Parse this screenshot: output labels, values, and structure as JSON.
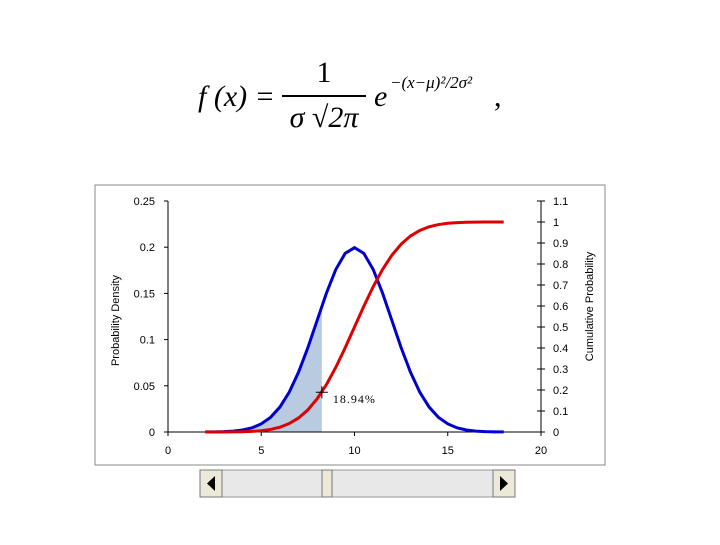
{
  "formula": {
    "lhs": "f (x) =",
    "numerator": "1",
    "denominator": "σ √2π",
    "base": "e",
    "exponent": "−(x−μ)²/2σ²",
    "trailing": ","
  },
  "chart_data": {
    "type": "line",
    "x": [
      2,
      2.5,
      3,
      3.5,
      4,
      4.5,
      5,
      5.5,
      6,
      6.5,
      7,
      7.5,
      8,
      8.5,
      9,
      9.5,
      10,
      10.5,
      11,
      11.5,
      12,
      12.5,
      13,
      13.5,
      14,
      14.5,
      15,
      15.5,
      16,
      16.5,
      17,
      17.5,
      18
    ],
    "series": [
      {
        "name": "Probability Density",
        "color": "#0000cc",
        "axis": "y",
        "values": [
          0.0001,
          0.0002,
          0.0004,
          0.001,
          0.0022,
          0.0045,
          0.0088,
          0.0159,
          0.027,
          0.0431,
          0.0648,
          0.0913,
          0.121,
          0.1506,
          0.176,
          0.1933,
          0.1995,
          0.1933,
          0.176,
          0.1506,
          0.121,
          0.0913,
          0.0648,
          0.0431,
          0.027,
          0.0159,
          0.0088,
          0.0045,
          0.0022,
          0.001,
          0.0004,
          0.0002,
          0.0001
        ]
      },
      {
        "name": "Cumulative Probability",
        "color": "#dd0000",
        "axis": "y2",
        "values": [
          0.0,
          0.0001,
          0.0002,
          0.0006,
          0.0013,
          0.003,
          0.0062,
          0.0122,
          0.0228,
          0.0401,
          0.0668,
          0.1056,
          0.1587,
          0.2266,
          0.3085,
          0.4013,
          0.5,
          0.5987,
          0.6915,
          0.7734,
          0.8413,
          0.8944,
          0.9332,
          0.9599,
          0.9772,
          0.9878,
          0.9938,
          0.997,
          0.9987,
          0.9994,
          0.9998,
          0.9999,
          1.0
        ]
      }
    ],
    "ylabel": "Probability Density",
    "y2label": "Cumulative Probability",
    "xlim": [
      0,
      20
    ],
    "xticks": [
      0,
      5,
      10,
      15,
      20
    ],
    "ylim": [
      0,
      0.25
    ],
    "yticks": [
      0,
      0.05,
      0.1,
      0.15,
      0.2,
      0.25
    ],
    "y2lim": [
      0,
      1.1
    ],
    "y2ticks": [
      0,
      0.1,
      0.2,
      0.3,
      0.4,
      0.5,
      0.6,
      0.7,
      0.8,
      0.9,
      1,
      1.1
    ],
    "shade_to": 8.25,
    "shade_color": "#b9cbe0",
    "annotation": {
      "text": "18.94%",
      "x": 8.25,
      "y": 0.1894,
      "axis": "y2"
    }
  }
}
